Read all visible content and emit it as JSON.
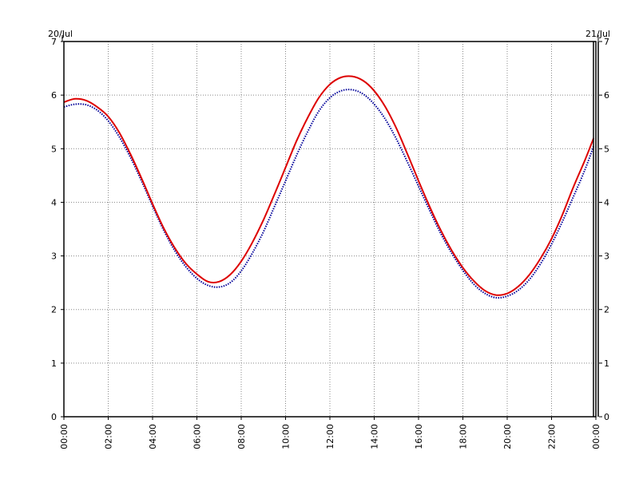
{
  "chart_data": {
    "type": "line",
    "title": "",
    "xlabel": "",
    "ylabel": "",
    "date_left": "20/Jul",
    "date_right": "21/Jul",
    "xlim_hours": [
      0,
      24
    ],
    "ylim": [
      0,
      7
    ],
    "x_tick_labels": [
      "00:00",
      "02:00",
      "04:00",
      "06:00",
      "08:00",
      "10:00",
      "12:00",
      "14:00",
      "16:00",
      "18:00",
      "20:00",
      "22:00",
      "00:00"
    ],
    "y_tick_labels": [
      "0",
      "1",
      "2",
      "3",
      "4",
      "5",
      "6",
      "7"
    ],
    "grid": true,
    "series": [
      {
        "color": "#dd0000",
        "style": "solid",
        "points": [
          [
            0.0,
            5.87
          ],
          [
            0.5,
            5.93
          ],
          [
            1.0,
            5.9
          ],
          [
            1.5,
            5.78
          ],
          [
            2.0,
            5.6
          ],
          [
            2.5,
            5.3
          ],
          [
            3.0,
            4.9
          ],
          [
            3.5,
            4.45
          ],
          [
            4.0,
            3.97
          ],
          [
            4.5,
            3.52
          ],
          [
            5.0,
            3.15
          ],
          [
            5.5,
            2.86
          ],
          [
            6.0,
            2.66
          ],
          [
            6.5,
            2.52
          ],
          [
            7.0,
            2.52
          ],
          [
            7.5,
            2.65
          ],
          [
            8.0,
            2.9
          ],
          [
            8.5,
            3.25
          ],
          [
            9.0,
            3.67
          ],
          [
            9.5,
            4.15
          ],
          [
            10.0,
            4.65
          ],
          [
            10.5,
            5.15
          ],
          [
            11.0,
            5.58
          ],
          [
            11.5,
            5.95
          ],
          [
            12.0,
            6.2
          ],
          [
            12.5,
            6.33
          ],
          [
            13.0,
            6.35
          ],
          [
            13.5,
            6.27
          ],
          [
            14.0,
            6.08
          ],
          [
            14.5,
            5.78
          ],
          [
            15.0,
            5.38
          ],
          [
            15.5,
            4.9
          ],
          [
            16.0,
            4.4
          ],
          [
            16.5,
            3.92
          ],
          [
            17.0,
            3.48
          ],
          [
            17.5,
            3.1
          ],
          [
            18.0,
            2.78
          ],
          [
            18.5,
            2.53
          ],
          [
            19.0,
            2.35
          ],
          [
            19.5,
            2.27
          ],
          [
            20.0,
            2.3
          ],
          [
            20.5,
            2.43
          ],
          [
            21.0,
            2.65
          ],
          [
            21.5,
            2.95
          ],
          [
            22.0,
            3.32
          ],
          [
            22.5,
            3.78
          ],
          [
            23.0,
            4.3
          ],
          [
            23.5,
            4.78
          ],
          [
            23.9,
            5.2
          ]
        ]
      },
      {
        "color": "#000099",
        "style": "dotted",
        "points": [
          [
            0.0,
            5.78
          ],
          [
            0.5,
            5.83
          ],
          [
            1.0,
            5.82
          ],
          [
            1.5,
            5.72
          ],
          [
            2.0,
            5.52
          ],
          [
            2.5,
            5.22
          ],
          [
            3.0,
            4.84
          ],
          [
            3.5,
            4.4
          ],
          [
            4.0,
            3.93
          ],
          [
            4.5,
            3.48
          ],
          [
            5.0,
            3.1
          ],
          [
            5.5,
            2.8
          ],
          [
            6.0,
            2.58
          ],
          [
            6.5,
            2.45
          ],
          [
            7.0,
            2.42
          ],
          [
            7.5,
            2.5
          ],
          [
            8.0,
            2.72
          ],
          [
            8.5,
            3.05
          ],
          [
            9.0,
            3.45
          ],
          [
            9.5,
            3.92
          ],
          [
            10.0,
            4.4
          ],
          [
            10.5,
            4.88
          ],
          [
            11.0,
            5.32
          ],
          [
            11.5,
            5.7
          ],
          [
            12.0,
            5.95
          ],
          [
            12.5,
            6.08
          ],
          [
            13.0,
            6.1
          ],
          [
            13.5,
            6.02
          ],
          [
            14.0,
            5.83
          ],
          [
            14.5,
            5.55
          ],
          [
            15.0,
            5.18
          ],
          [
            15.5,
            4.75
          ],
          [
            16.0,
            4.3
          ],
          [
            16.5,
            3.85
          ],
          [
            17.0,
            3.42
          ],
          [
            17.5,
            3.05
          ],
          [
            18.0,
            2.73
          ],
          [
            18.5,
            2.47
          ],
          [
            19.0,
            2.3
          ],
          [
            19.5,
            2.22
          ],
          [
            20.0,
            2.25
          ],
          [
            20.5,
            2.36
          ],
          [
            21.0,
            2.56
          ],
          [
            21.5,
            2.85
          ],
          [
            22.0,
            3.22
          ],
          [
            22.5,
            3.65
          ],
          [
            23.0,
            4.12
          ],
          [
            23.5,
            4.6
          ],
          [
            23.9,
            5.05
          ]
        ]
      }
    ]
  }
}
